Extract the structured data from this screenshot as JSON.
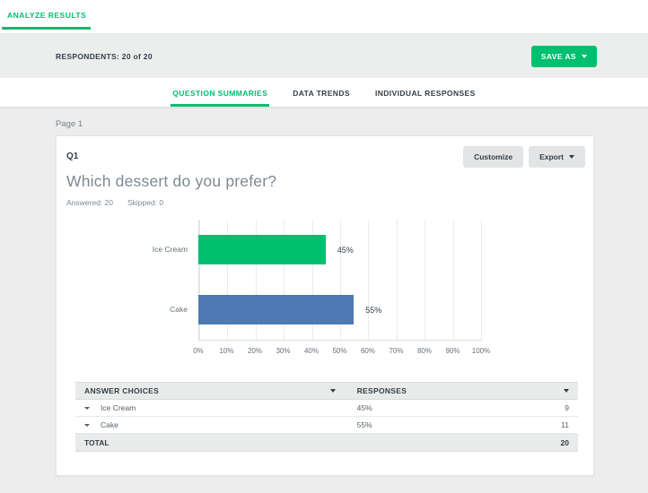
{
  "header": {
    "analyze_tab_label": "ANALYZE RESULTS"
  },
  "toolbar": {
    "respondents_label": "RESPONDENTS: 20 of 20",
    "save_as_label": "SAVE AS"
  },
  "tabs": [
    {
      "label": "QUESTION SUMMARIES",
      "active": true
    },
    {
      "label": "DATA TRENDS",
      "active": false
    },
    {
      "label": "INDIVIDUAL RESPONSES",
      "active": false
    }
  ],
  "page_label": "Page 1",
  "question": {
    "number": "Q1",
    "title": "Which dessert do you prefer?",
    "answered_label": "Answered: 20",
    "skipped_label": "Skipped: 0",
    "customize_label": "Customize",
    "export_label": "Export"
  },
  "chart_data": {
    "type": "bar",
    "orientation": "horizontal",
    "categories": [
      "Ice Cream",
      "Cake"
    ],
    "values": [
      45,
      55
    ],
    "value_labels": [
      "45%",
      "55%"
    ],
    "bar_colors": [
      "#00bf6f",
      "#4e79b2"
    ],
    "x_ticks": [
      "0%",
      "10%",
      "20%",
      "30%",
      "40%",
      "50%",
      "60%",
      "70%",
      "80%",
      "90%",
      "100%"
    ],
    "xlim": [
      0,
      100
    ],
    "grid": "vertical"
  },
  "table": {
    "headers": [
      "ANSWER CHOICES",
      "RESPONSES"
    ],
    "rows": [
      {
        "choice": "Ice Cream",
        "percent": "45%",
        "count": "9"
      },
      {
        "choice": "Cake",
        "percent": "55%",
        "count": "11"
      }
    ],
    "total_label": "TOTAL",
    "total_value": "20"
  },
  "icons": {
    "caret": "caret-down-icon"
  },
  "colors": {
    "accent_green": "#00bf6f",
    "bar_blue": "#4e79b2",
    "dark_text": "#333e48",
    "muted_text": "#7d8993",
    "band_bg": "#eceeed",
    "table_header_bg": "#e9ebea"
  }
}
